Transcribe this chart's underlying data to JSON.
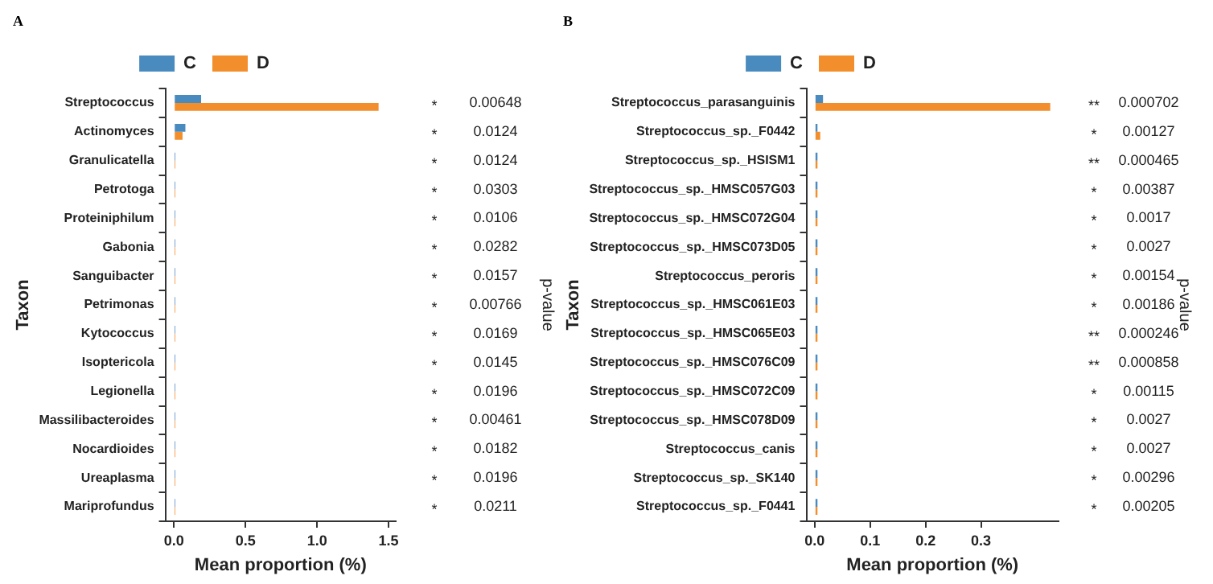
{
  "chart_data": [
    {
      "type": "bar",
      "orientation": "horizontal",
      "title": "A",
      "xlabel": "Mean proportion (%)",
      "ylabel": "Taxon",
      "y2label": "p-value",
      "legend": "top",
      "grid": false,
      "categories": [
        "Streptococcus",
        "Actinomyces",
        "Granulicatella",
        "Petrotoga",
        "Proteiniphilum",
        "Gabonia",
        "Sanguibacter",
        "Petrimonas",
        "Kytococcus",
        "Isoptericola",
        "Legionella",
        "Massilibacteroides",
        "Nocardioides",
        "Ureaplasma",
        "Mariprofundus"
      ],
      "series": [
        {
          "name": "C",
          "color": "#4a8bbf",
          "values": [
            0.19,
            0.08,
            0.01,
            0.01,
            0.01,
            0.01,
            0.01,
            0.01,
            0.01,
            0.01,
            0.01,
            0.01,
            0.01,
            0.01,
            0.01
          ]
        },
        {
          "name": "D",
          "color": "#f28e2b",
          "values": [
            1.43,
            0.06,
            0.01,
            0.01,
            0.01,
            0.01,
            0.01,
            0.01,
            0.01,
            0.01,
            0.01,
            0.01,
            0.01,
            0.01,
            0.01
          ]
        }
      ],
      "xlim": [
        -0.06,
        1.55
      ],
      "xticks": [
        {
          "value": 0,
          "label": "0.0"
        },
        {
          "value": 0.5,
          "label": "0.5"
        },
        {
          "value": 1,
          "label": "1.0"
        },
        {
          "value": 1.5,
          "label": "1.5"
        }
      ],
      "annotations": [
        "*",
        "0.00648",
        "*",
        "0.0124",
        "*",
        "0.0124",
        "*",
        "0.0303",
        "*",
        "0.0106",
        "*",
        "0.0282",
        "*",
        "0.0157",
        "*",
        "0.00766",
        "*",
        "0.0169",
        "*",
        "0.0145",
        "*",
        "0.0196",
        "*",
        "0.00461",
        "*",
        "0.0182",
        "*",
        "0.0196",
        "*",
        "0.0211"
      ]
    },
    {
      "type": "bar",
      "orientation": "horizontal",
      "title": "B",
      "xlabel": "Mean proportion (%)",
      "ylabel": "Taxon",
      "y2label": "p-value",
      "legend": "top",
      "grid": false,
      "categories": [
        "Streptococcus_parasanguinis",
        "Streptococcus_sp._F0442",
        "Streptococcus_sp._HSISM1",
        "Streptococcus_sp._HMSC057G03",
        "Streptococcus_sp._HMSC072G04",
        "Streptococcus_sp._HMSC073D05",
        "Streptococcus_peroris",
        "Streptococcus_sp._HMSC061E03",
        "Streptococcus_sp._HMSC065E03",
        "Streptococcus_sp._HMSC076C09",
        "Streptococcus_sp._HMSC072C09",
        "Streptococcus_sp._HMSC078D09",
        "Streptococcus_canis",
        "Streptococcus_sp._SK140",
        "Streptococcus_sp._F0441"
      ],
      "series": [
        {
          "name": "C",
          "color": "#4a8bbf",
          "values": [
            0.015,
            0.005,
            0.005,
            0.005,
            0.005,
            0.005,
            0.005,
            0.005,
            0.005,
            0.005,
            0.005,
            0.005,
            0.005,
            0.005,
            0.005
          ]
        },
        {
          "name": "D",
          "color": "#f28e2b",
          "values": [
            0.425,
            0.01,
            0.005,
            0.005,
            0.005,
            0.005,
            0.005,
            0.005,
            0.005,
            0.005,
            0.005,
            0.005,
            0.005,
            0.005,
            0.005
          ]
        }
      ],
      "xlim": [
        -0.015,
        0.44
      ],
      "xticks": [
        {
          "value": 0,
          "label": "0.0"
        },
        {
          "value": 0.1,
          "label": "0.1"
        },
        {
          "value": 0.2,
          "label": "0.2"
        },
        {
          "value": 0.3,
          "label": "0.3"
        }
      ],
      "annotations": [
        "**",
        "0.000702",
        "*",
        "0.00127",
        "**",
        "0.000465",
        "*",
        "0.00387",
        "*",
        "0.0017",
        "*",
        "0.0027",
        "*",
        "0.00154",
        "*",
        "0.00186",
        "**",
        "0.000246",
        "**",
        "0.000858",
        "*",
        "0.00115",
        "*",
        "0.0027",
        "*",
        "0.0027",
        "*",
        "0.00296",
        "*",
        "0.00205"
      ]
    }
  ]
}
